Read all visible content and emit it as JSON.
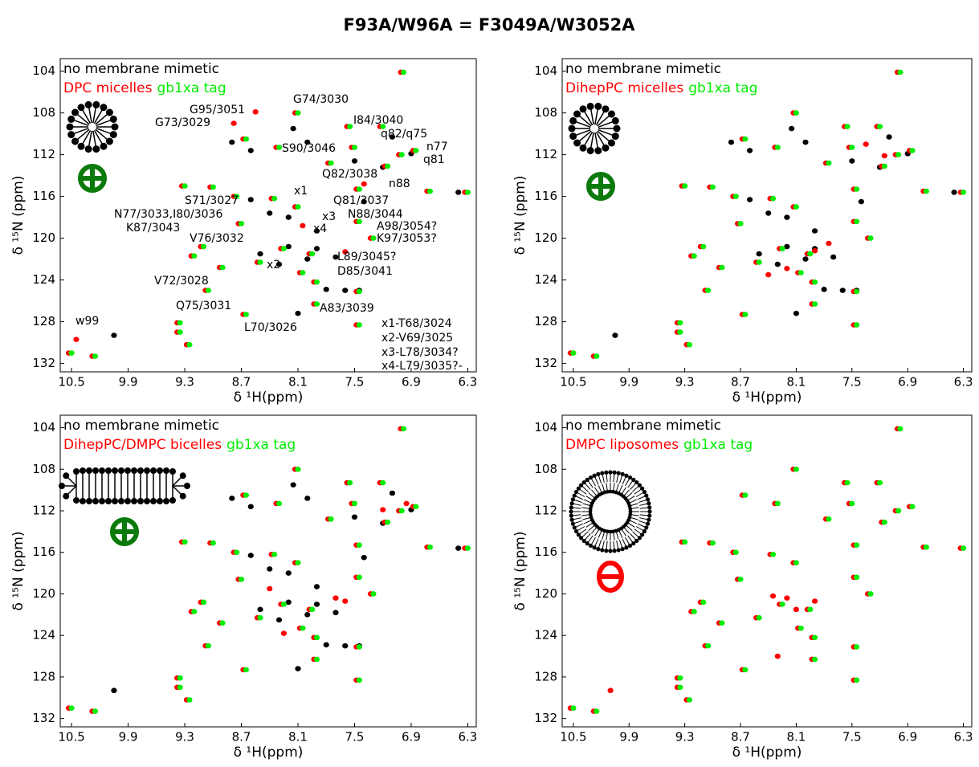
{
  "title": "F93A/W96A = F3049A/W3052A",
  "chart_data": [
    {
      "type": "scatter",
      "xlabel": "δ ¹H(ppm)",
      "ylabel": "δ ¹⁵N (ppm)",
      "xlim": [
        10.62,
        6.21
      ],
      "ylim": [
        132.8,
        102.8
      ],
      "xticks": [
        10.5,
        9.9,
        9.3,
        8.7,
        8.1,
        7.5,
        6.9,
        6.3
      ],
      "yticks": [
        104,
        108,
        112,
        116,
        120,
        124,
        128,
        132
      ],
      "series": [
        {
          "name": "no membrane mimetic",
          "color": "#000000",
          "x": [
            8.15,
            8.0,
            8.6,
            8.8,
            7.5,
            6.9,
            7.2,
            7.4,
            8.6,
            8.4,
            8.2,
            7.9,
            7.9,
            7.7,
            8.0,
            8.2,
            7.45,
            7.6,
            8.1,
            10.05,
            6.4,
            7.1,
            8.5,
            8.3,
            7.8
          ],
          "values": [
            109.5,
            110.8,
            111.6,
            110.8,
            112.6,
            111.9,
            113.2,
            116.5,
            116.3,
            117.6,
            118.0,
            119.3,
            121.0,
            121.8,
            122.0,
            120.8,
            125.0,
            125.0,
            127.2,
            129.3,
            115.6,
            110.3,
            121.5,
            122.5,
            124.9
          ]
        },
        {
          "name": "DPC micelles",
          "color": "#ff0000",
          "x": [
            7.01,
            8.13,
            7.58,
            7.23,
            8.68,
            8.33,
            7.53,
            7.03,
            6.88,
            7.78,
            7.18,
            9.33,
            9.03,
            7.48,
            6.73,
            8.78,
            8.38,
            8.13,
            8.73,
            7.48,
            7.33,
            9.13,
            8.93,
            9.23,
            8.28,
            7.98,
            8.53,
            8.08,
            7.93,
            9.08,
            7.48,
            8.68,
            7.93,
            9.38,
            9.38,
            7.48,
            9.28,
            10.53,
            10.28,
            6.33,
            8.55,
            8.78,
            10.45,
            7.4,
            8.05,
            7.6
          ],
          "values": [
            104.1,
            108.0,
            109.3,
            109.3,
            110.5,
            111.3,
            111.3,
            112.0,
            111.6,
            112.8,
            113.1,
            115.0,
            115.1,
            115.3,
            115.5,
            116.0,
            116.2,
            117.0,
            118.6,
            118.4,
            120.0,
            120.8,
            122.8,
            121.7,
            121.0,
            121.5,
            122.3,
            123.3,
            124.2,
            125.0,
            125.1,
            127.3,
            126.3,
            128.1,
            129.0,
            128.3,
            130.2,
            131.0,
            131.3,
            115.6,
            107.9,
            109.0,
            129.7,
            114.8,
            118.8,
            121.3
          ]
        },
        {
          "name": "gb1xa tag",
          "color": "#00ee00",
          "x": [
            6.98,
            8.1,
            7.55,
            7.2,
            8.65,
            8.3,
            7.5,
            7.0,
            6.85,
            7.75,
            7.15,
            9.3,
            9.0,
            7.45,
            6.7,
            8.75,
            8.35,
            8.1,
            8.7,
            7.45,
            7.3,
            9.1,
            8.9,
            9.2,
            8.25,
            7.95,
            8.5,
            8.05,
            7.9,
            9.05,
            7.45,
            8.65,
            7.9,
            9.35,
            9.35,
            7.45,
            9.25,
            10.5,
            10.25,
            6.3
          ],
          "values": [
            104.1,
            108.0,
            109.3,
            109.3,
            110.5,
            111.3,
            111.3,
            112.0,
            111.6,
            112.8,
            113.1,
            115.0,
            115.1,
            115.3,
            115.5,
            116.0,
            116.2,
            117.0,
            118.6,
            118.4,
            120.0,
            120.8,
            122.8,
            121.7,
            121.0,
            121.5,
            122.3,
            123.3,
            124.2,
            125.0,
            125.1,
            127.3,
            126.3,
            128.1,
            129.0,
            128.3,
            130.2,
            131.0,
            131.3,
            115.6
          ]
        }
      ],
      "annotations": [
        "G74/3030",
        "G95/3051",
        "G73/3029",
        "I84/3040",
        "q82/q75",
        "S90/3046",
        "n77",
        "q81",
        "Q82/3038",
        "n88",
        "x1",
        "S71/3027",
        "Q81/3037",
        "N77/3033,I80/3036",
        "N88/3044",
        "x3",
        "K87/3043",
        "A98/3054?",
        "x4",
        "V76/3032",
        "K97/3053?",
        "L89/3045?",
        "x2",
        "D85/3041",
        "V72/3028",
        "Q75/3031",
        "A83/3039",
        "L70/3026",
        "w99",
        "x1-T68/3024",
        "x2-V69/3025",
        "x3-L78/3034?",
        "x4-L79/3035?-"
      ]
    },
    {
      "type": "scatter",
      "xlabel": "δ ¹H(ppm)",
      "ylabel": "δ ¹⁵N (ppm)",
      "xlim": [
        10.62,
        6.21
      ],
      "ylim": [
        132.8,
        102.8
      ],
      "xticks": [
        10.5,
        9.9,
        9.3,
        8.7,
        8.1,
        7.5,
        6.9,
        6.3
      ],
      "yticks": [
        104,
        108,
        112,
        116,
        120,
        124,
        128,
        132
      ],
      "series": [
        {
          "name": "no membrane mimetic",
          "color": "#000000",
          "x": [
            8.15,
            8.0,
            8.6,
            8.8,
            7.5,
            6.9,
            7.2,
            7.4,
            8.6,
            8.4,
            8.2,
            7.9,
            7.9,
            7.7,
            8.0,
            8.2,
            7.45,
            7.6,
            8.1,
            10.05,
            6.4,
            7.1,
            8.5,
            8.3,
            7.8
          ],
          "values": [
            109.5,
            110.8,
            111.6,
            110.8,
            112.6,
            111.9,
            113.2,
            116.5,
            116.3,
            117.6,
            118.0,
            119.3,
            121.0,
            121.8,
            122.0,
            120.8,
            125.0,
            125.0,
            127.2,
            129.3,
            115.6,
            110.3,
            121.5,
            122.5,
            124.9
          ]
        },
        {
          "name": "DihepPC micelles",
          "color": "#ff0000",
          "x": [
            7.01,
            8.13,
            7.58,
            7.23,
            8.68,
            8.33,
            7.53,
            7.03,
            6.88,
            7.78,
            7.18,
            9.33,
            9.03,
            7.48,
            6.73,
            8.78,
            8.38,
            8.13,
            8.73,
            7.48,
            7.33,
            9.13,
            8.93,
            9.23,
            8.28,
            7.98,
            8.53,
            8.08,
            7.93,
            9.08,
            7.48,
            8.68,
            7.93,
            9.38,
            9.38,
            7.48,
            9.28,
            10.53,
            10.28,
            6.33,
            7.75,
            7.9,
            8.2,
            8.4,
            7.35,
            7.15
          ],
          "values": [
            104.1,
            108.0,
            109.3,
            109.3,
            110.5,
            111.3,
            111.3,
            112.0,
            111.6,
            112.8,
            113.1,
            115.0,
            115.1,
            115.3,
            115.5,
            116.0,
            116.2,
            117.0,
            118.6,
            118.4,
            120.0,
            120.8,
            122.8,
            121.7,
            121.0,
            121.5,
            122.3,
            123.3,
            124.2,
            125.0,
            125.1,
            127.3,
            126.3,
            128.1,
            129.0,
            128.3,
            130.2,
            131.0,
            131.3,
            115.6,
            120.5,
            121.2,
            122.9,
            123.5,
            111.0,
            112.1
          ]
        },
        {
          "name": "gb1xa tag",
          "color": "#00ee00",
          "x": [
            6.98,
            8.1,
            7.55,
            7.2,
            8.65,
            8.3,
            7.5,
            7.0,
            6.85,
            7.75,
            7.15,
            9.3,
            9.0,
            7.45,
            6.7,
            8.75,
            8.35,
            8.1,
            8.7,
            7.45,
            7.3,
            9.1,
            8.9,
            9.2,
            8.25,
            7.95,
            8.5,
            8.05,
            7.9,
            9.05,
            7.45,
            8.65,
            7.9,
            9.35,
            9.35,
            7.45,
            9.25,
            10.5,
            10.25,
            6.3
          ],
          "values": [
            104.1,
            108.0,
            109.3,
            109.3,
            110.5,
            111.3,
            111.3,
            112.0,
            111.6,
            112.8,
            113.1,
            115.0,
            115.1,
            115.3,
            115.5,
            116.0,
            116.2,
            117.0,
            118.6,
            118.4,
            120.0,
            120.8,
            122.8,
            121.7,
            121.0,
            121.5,
            122.3,
            123.3,
            124.2,
            125.0,
            125.1,
            127.3,
            126.3,
            128.1,
            129.0,
            128.3,
            130.2,
            131.0,
            131.3,
            115.6
          ]
        }
      ]
    },
    {
      "type": "scatter",
      "xlabel": "δ ¹H(ppm)",
      "ylabel": "δ ¹⁵N (ppm)",
      "xlim": [
        10.62,
        6.21
      ],
      "ylim": [
        132.8,
        102.8
      ],
      "xticks": [
        10.5,
        9.9,
        9.3,
        8.7,
        8.1,
        7.5,
        6.9,
        6.3
      ],
      "yticks": [
        104,
        108,
        112,
        116,
        120,
        124,
        128,
        132
      ],
      "series": [
        {
          "name": "no membrane mimetic",
          "color": "#000000",
          "x": [
            8.15,
            8.0,
            8.6,
            8.8,
            7.5,
            6.9,
            7.2,
            7.4,
            8.6,
            8.4,
            8.2,
            7.9,
            7.9,
            7.7,
            8.0,
            8.2,
            7.45,
            7.6,
            8.1,
            10.05,
            6.4,
            7.1,
            8.5,
            8.3,
            7.8
          ],
          "values": [
            109.5,
            110.8,
            111.6,
            110.8,
            112.6,
            111.9,
            113.2,
            116.5,
            116.3,
            117.6,
            118.0,
            119.3,
            121.0,
            121.8,
            122.0,
            120.8,
            125.0,
            125.0,
            127.2,
            129.3,
            115.6,
            110.3,
            121.5,
            122.5,
            124.9
          ]
        },
        {
          "name": "DihepPC/DMPC bicelles",
          "color": "#ff0000",
          "x": [
            7.01,
            8.13,
            7.58,
            7.23,
            8.68,
            8.33,
            7.53,
            7.03,
            6.88,
            7.78,
            7.18,
            9.33,
            9.03,
            7.48,
            6.73,
            8.78,
            8.38,
            8.13,
            8.73,
            7.48,
            7.33,
            9.13,
            8.93,
            9.23,
            8.28,
            7.98,
            8.53,
            8.08,
            7.93,
            9.08,
            7.48,
            8.68,
            7.93,
            9.38,
            9.38,
            7.48,
            9.28,
            10.53,
            10.28,
            6.33,
            7.7,
            7.6,
            8.4,
            7.2,
            6.95,
            8.25
          ],
          "values": [
            104.1,
            108.0,
            109.3,
            109.3,
            110.5,
            111.3,
            111.3,
            112.0,
            111.6,
            112.8,
            113.1,
            115.0,
            115.1,
            115.3,
            115.5,
            116.0,
            116.2,
            117.0,
            118.6,
            118.4,
            120.0,
            120.8,
            122.8,
            121.7,
            121.0,
            121.5,
            122.3,
            123.3,
            124.2,
            125.0,
            125.1,
            127.3,
            126.3,
            128.1,
            129.0,
            128.3,
            130.2,
            131.0,
            131.3,
            115.6,
            120.4,
            120.7,
            119.5,
            111.9,
            111.3,
            123.8
          ]
        },
        {
          "name": "gb1xa tag",
          "color": "#00ee00",
          "x": [
            6.98,
            8.1,
            7.55,
            7.2,
            8.65,
            8.3,
            7.5,
            7.0,
            6.85,
            7.75,
            7.15,
            9.3,
            9.0,
            7.45,
            6.7,
            8.75,
            8.35,
            8.1,
            8.7,
            7.45,
            7.3,
            9.1,
            8.9,
            9.2,
            8.25,
            7.95,
            8.5,
            8.05,
            7.9,
            9.05,
            7.45,
            8.65,
            7.9,
            9.35,
            9.35,
            7.45,
            9.25,
            10.5,
            10.25,
            6.3
          ],
          "values": [
            104.1,
            108.0,
            109.3,
            109.3,
            110.5,
            111.3,
            111.3,
            112.0,
            111.6,
            112.8,
            113.1,
            115.0,
            115.1,
            115.3,
            115.5,
            116.0,
            116.2,
            117.0,
            118.6,
            118.4,
            120.0,
            120.8,
            122.8,
            121.7,
            121.0,
            121.5,
            122.3,
            123.3,
            124.2,
            125.0,
            125.1,
            127.3,
            126.3,
            128.1,
            129.0,
            128.3,
            130.2,
            131.0,
            131.3,
            115.6
          ]
        }
      ]
    },
    {
      "type": "scatter",
      "xlabel": "δ ¹H(ppm)",
      "ylabel": "δ ¹⁵N (ppm)",
      "xlim": [
        10.62,
        6.21
      ],
      "ylim": [
        132.8,
        102.8
      ],
      "xticks": [
        10.5,
        9.9,
        9.3,
        8.7,
        8.1,
        7.5,
        6.9,
        6.3
      ],
      "yticks": [
        104,
        108,
        112,
        116,
        120,
        124,
        128,
        132
      ],
      "series": [
        {
          "name": "no membrane mimetic",
          "color": "#000000",
          "x": [],
          "values": []
        },
        {
          "name": "DMPC liposomes",
          "color": "#ff0000",
          "x": [
            7.01,
            8.13,
            7.58,
            7.23,
            8.68,
            8.33,
            7.53,
            7.03,
            6.88,
            7.78,
            7.18,
            9.33,
            9.03,
            7.48,
            6.73,
            8.78,
            8.38,
            8.13,
            8.73,
            7.48,
            7.33,
            9.13,
            8.93,
            9.23,
            8.28,
            7.98,
            8.53,
            8.08,
            7.93,
            9.08,
            7.48,
            8.68,
            7.93,
            9.38,
            9.38,
            7.48,
            9.28,
            10.53,
            10.28,
            6.33,
            8.35,
            8.2,
            7.9,
            8.1,
            10.1,
            8.3
          ],
          "values": [
            104.1,
            108.0,
            109.3,
            109.3,
            110.5,
            111.3,
            111.3,
            112.0,
            111.6,
            112.8,
            113.1,
            115.0,
            115.1,
            115.3,
            115.5,
            116.0,
            116.2,
            117.0,
            118.6,
            118.4,
            120.0,
            120.8,
            122.8,
            121.7,
            121.0,
            121.5,
            122.3,
            123.3,
            124.2,
            125.0,
            125.1,
            127.3,
            126.3,
            128.1,
            129.0,
            128.3,
            130.2,
            131.0,
            131.3,
            115.6,
            120.2,
            120.4,
            120.7,
            121.5,
            129.3,
            126.0
          ]
        },
        {
          "name": "gb1xa tag",
          "color": "#00ee00",
          "x": [
            6.98,
            8.1,
            7.55,
            7.2,
            8.65,
            8.3,
            7.5,
            7.0,
            6.85,
            7.75,
            7.15,
            9.3,
            9.0,
            7.45,
            6.7,
            8.75,
            8.35,
            8.1,
            8.7,
            7.45,
            7.3,
            9.1,
            8.9,
            9.2,
            8.25,
            7.95,
            8.5,
            8.05,
            7.9,
            9.05,
            7.45,
            8.65,
            7.9,
            9.35,
            9.35,
            7.45,
            9.25,
            10.5,
            10.25,
            6.3
          ],
          "values": [
            104.1,
            108.0,
            109.3,
            109.3,
            110.5,
            111.3,
            111.3,
            112.0,
            111.6,
            112.8,
            113.1,
            115.0,
            115.1,
            115.3,
            115.5,
            116.0,
            116.2,
            117.0,
            118.6,
            118.4,
            120.0,
            120.8,
            122.8,
            121.7,
            121.0,
            121.5,
            122.3,
            123.3,
            124.2,
            125.0,
            125.1,
            127.3,
            126.3,
            128.1,
            129.0,
            128.3,
            130.2,
            131.0,
            131.3,
            115.6
          ]
        }
      ]
    }
  ]
}
